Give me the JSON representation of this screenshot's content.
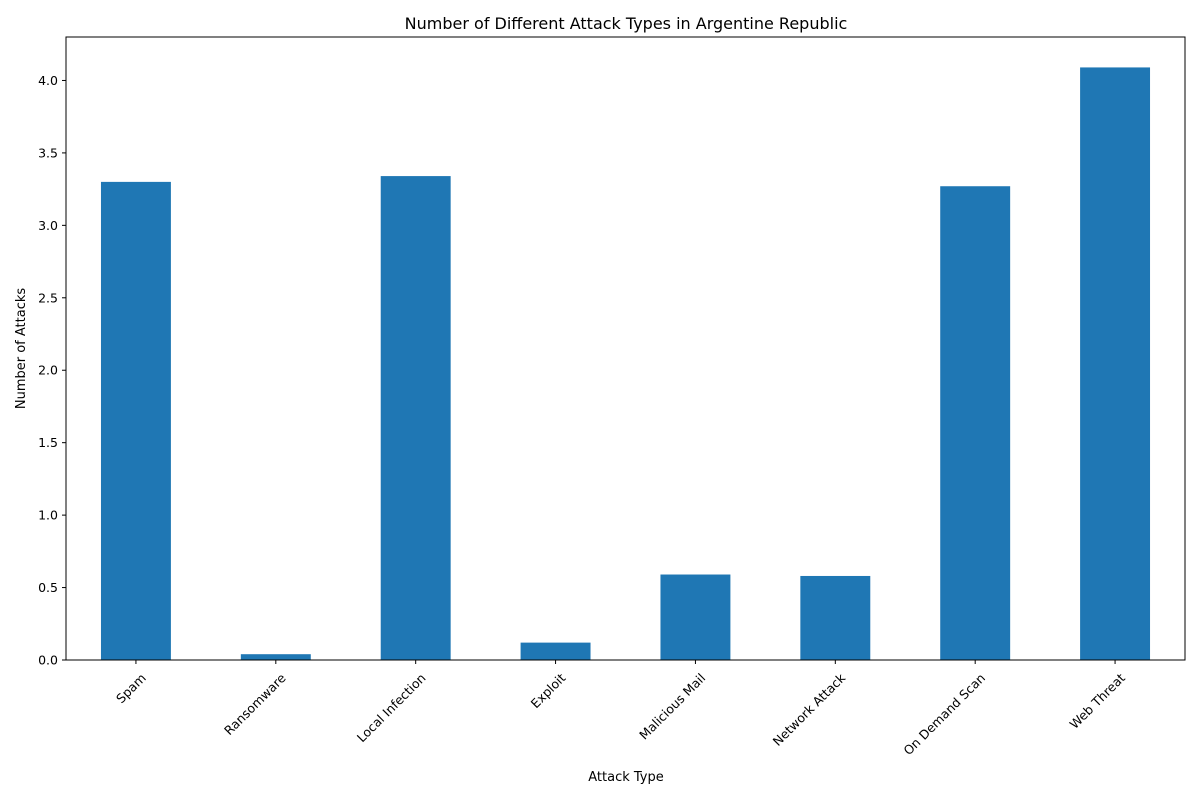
{
  "chart_data": {
    "type": "bar",
    "title": "Number of Different Attack Types in Argentine Republic",
    "xlabel": "Attack Type",
    "ylabel": "Number of Attacks",
    "categories": [
      "Spam",
      "Ransomware",
      "Local Infection",
      "Exploit",
      "Malicious Mail",
      "Network Attack",
      "On Demand Scan",
      "Web Threat"
    ],
    "values": [
      3.3,
      0.04,
      3.34,
      0.12,
      0.59,
      0.58,
      3.27,
      4.09
    ],
    "ylim": [
      0,
      4.3
    ],
    "yticks": [
      0.0,
      0.5,
      1.0,
      1.5,
      2.0,
      2.5,
      3.0,
      3.5,
      4.0
    ],
    "ytick_labels": [
      "0.0",
      "0.5",
      "1.0",
      "1.5",
      "2.0",
      "2.5",
      "3.0",
      "3.5",
      "4.0"
    ],
    "x_tick_rotation_deg": 45,
    "bar_color": "#1f77b4",
    "grid": false,
    "legend": "none"
  }
}
